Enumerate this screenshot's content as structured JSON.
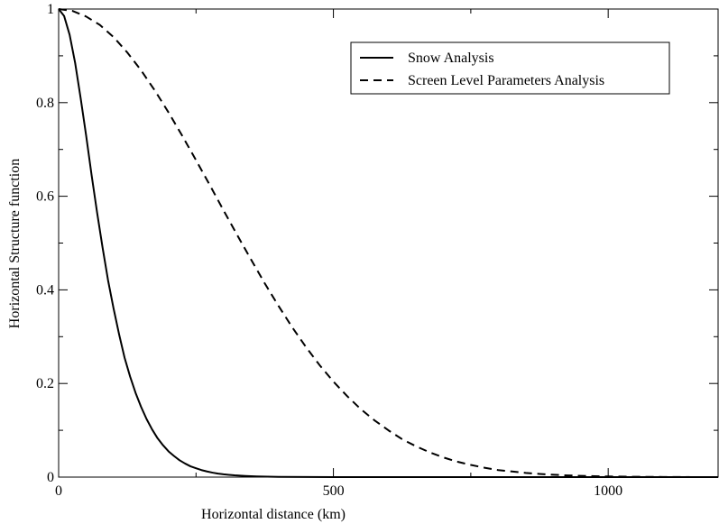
{
  "chart_data": {
    "type": "line",
    "xlabel": "Horizontal distance (km)",
    "ylabel": "Horizontal Structure function",
    "xlim": [
      0,
      1200
    ],
    "ylim": [
      0,
      1
    ],
    "xticks": [
      0,
      500,
      1000
    ],
    "xtick_labels": [
      "0",
      "500",
      "1000"
    ],
    "yticks": [
      0,
      0.2,
      0.4,
      0.6,
      0.8,
      1
    ],
    "ytick_labels": [
      "0",
      "0.2",
      "0.4",
      "0.6",
      "0.8",
      "1"
    ],
    "grid": false,
    "legend_position": "top-right",
    "series": [
      {
        "name": "Snow Analysis",
        "style": "solid",
        "color": "#000000",
        "x": [
          0,
          10,
          20,
          30,
          40,
          50,
          60,
          70,
          80,
          90,
          100,
          110,
          120,
          130,
          140,
          150,
          160,
          170,
          180,
          190,
          200,
          210,
          220,
          230,
          240,
          250,
          260,
          270,
          280,
          290,
          300,
          320,
          340,
          360,
          380,
          400,
          450,
          500,
          600,
          700,
          800,
          900,
          1000,
          1100,
          1200
        ],
        "y": [
          1.0,
          0.985,
          0.945,
          0.885,
          0.81,
          0.73,
          0.645,
          0.565,
          0.49,
          0.42,
          0.36,
          0.305,
          0.255,
          0.215,
          0.18,
          0.15,
          0.124,
          0.102,
          0.083,
          0.068,
          0.055,
          0.045,
          0.036,
          0.029,
          0.023,
          0.019,
          0.015,
          0.012,
          0.0095,
          0.0075,
          0.006,
          0.0038,
          0.0024,
          0.0015,
          0.001,
          0.0006,
          0.0002,
          0.0001,
          0.0,
          0.0,
          0.0,
          0.0,
          0.0,
          0.0,
          0.0
        ]
      },
      {
        "name": "Screen Level Parameters Analysis",
        "style": "dashed",
        "color": "#000000",
        "x": [
          0,
          25,
          50,
          75,
          100,
          125,
          150,
          175,
          200,
          225,
          250,
          275,
          300,
          325,
          350,
          375,
          400,
          425,
          450,
          475,
          500,
          525,
          550,
          575,
          600,
          625,
          650,
          675,
          700,
          725,
          750,
          775,
          800,
          825,
          850,
          875,
          900,
          925,
          950,
          975,
          1000,
          1050,
          1100,
          1150,
          1200
        ],
        "y": [
          1.0,
          0.996,
          0.984,
          0.966,
          0.94,
          0.907,
          0.869,
          0.826,
          0.779,
          0.729,
          0.677,
          0.624,
          0.57,
          0.517,
          0.465,
          0.414,
          0.366,
          0.32,
          0.278,
          0.239,
          0.204,
          0.173,
          0.145,
          0.121,
          0.1,
          0.081,
          0.066,
          0.053,
          0.042,
          0.033,
          0.026,
          0.02,
          0.015,
          0.012,
          0.009,
          0.0068,
          0.005,
          0.0037,
          0.0027,
          0.002,
          0.0014,
          0.0007,
          0.0003,
          0.0001,
          0.0
        ]
      }
    ]
  }
}
